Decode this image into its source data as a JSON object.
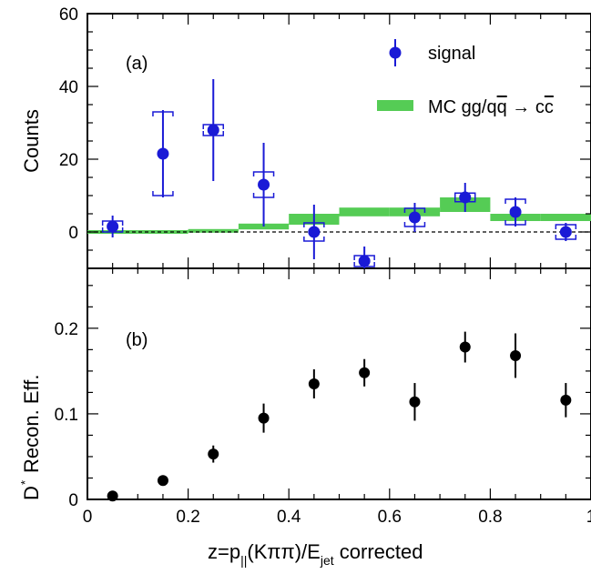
{
  "chart_data": [
    {
      "panel_label": "(a)",
      "type": "scatter",
      "ylabel": "Counts",
      "ylim": [
        -10,
        60
      ],
      "xlim": [
        0,
        1
      ],
      "y_ticks": [
        "0",
        "20",
        "40",
        "60"
      ],
      "legend": {
        "signal": "signal",
        "mc_prefix": "MC gg/q",
        "mc_qbar": "q",
        "mc_arrow": " → c",
        "mc_cbar": "c"
      },
      "legend_placement": "top-right",
      "reference_line": 0,
      "signal": {
        "name": "signal",
        "color": "#1a1ad6",
        "x": [
          0.05,
          0.15,
          0.25,
          0.35,
          0.45,
          0.55,
          0.65,
          0.75,
          0.85,
          0.95
        ],
        "y": [
          1.5,
          21.5,
          28,
          13,
          0,
          -8,
          4,
          9.5,
          5.5,
          0
        ],
        "stat_err": [
          3,
          12,
          14,
          11.5,
          7.5,
          4,
          4,
          4,
          4,
          2.5
        ],
        "sys_err": [
          1.5,
          11.5,
          1.5,
          3.5,
          2.5,
          1.5,
          2.5,
          1.2,
          3.5,
          2
        ]
      },
      "mc": {
        "name": "MC gg/qq̄ → cc̄",
        "color": "#55cc55",
        "bin_edges": [
          0,
          0.1,
          0.2,
          0.3,
          0.4,
          0.5,
          0.6,
          0.7,
          0.8,
          0.9,
          1.0
        ],
        "y": [
          0,
          0,
          0.3,
          1.5,
          3.5,
          5.5,
          5.5,
          7.5,
          4,
          4
        ],
        "half_width": [
          0.5,
          0.5,
          0.5,
          0.8,
          1.5,
          1.2,
          1.2,
          2,
          1,
          1
        ]
      }
    },
    {
      "panel_label": "(b)",
      "type": "scatter",
      "ylabel": "Recon. Eff.",
      "ylabel_prefix": "D",
      "ylabel_superscript": "*",
      "ylim": [
        0,
        0.27
      ],
      "xlim": [
        0,
        1
      ],
      "y_ticks": [
        "0",
        "0.1",
        "0.2"
      ],
      "x_ticks": [
        "0",
        "0.2",
        "0.4",
        "0.6",
        "0.8",
        "1"
      ],
      "xlabel_parts": {
        "a": "z=p",
        "sub1": "||",
        "b": "(Kππ)/E",
        "sub2": "jet",
        "c": " corrected"
      },
      "efficiency": {
        "color": "#000000",
        "x": [
          0.05,
          0.15,
          0.25,
          0.35,
          0.45,
          0.55,
          0.65,
          0.75,
          0.85,
          0.95
        ],
        "y": [
          0.004,
          0.022,
          0.053,
          0.095,
          0.135,
          0.148,
          0.114,
          0.178,
          0.168,
          0.116
        ],
        "err": [
          0.003,
          0.006,
          0.01,
          0.017,
          0.017,
          0.016,
          0.022,
          0.018,
          0.026,
          0.02
        ]
      }
    }
  ]
}
